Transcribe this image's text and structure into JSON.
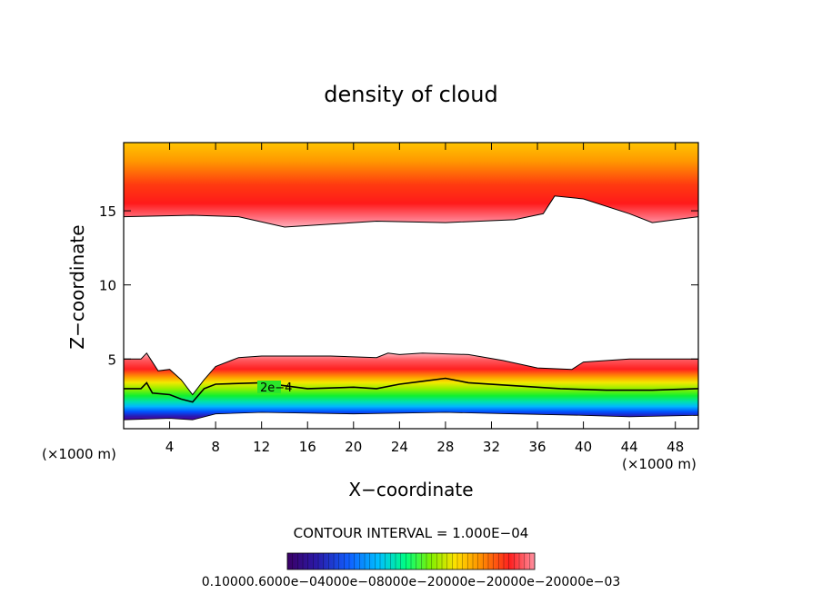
{
  "chart_data": {
    "type": "contour",
    "title": "density of cloud",
    "xlabel": "X−coordinate",
    "ylabel": "Z−coordinate",
    "x_unit_left": "(×1000 m)",
    "x_unit_right": "(×1000 m)",
    "xlim": [
      0,
      50
    ],
    "ylim": [
      0.3,
      19.6
    ],
    "x_ticks": [
      4,
      8,
      12,
      16,
      20,
      24,
      28,
      32,
      36,
      40,
      44,
      48
    ],
    "y_ticks": [
      5,
      10,
      15
    ],
    "contour_interval_text": "CONTOUR INTERVAL = 1.000E−04",
    "contour_label": "2e−4",
    "colorbar_labels": [
      "0.1000",
      "0.6000e−04",
      "0.1000e−03",
      "0.1500e−03",
      "0.2000e−03",
      "0.2500e−03",
      "0.3000e−03",
      "0.3500e−03"
    ],
    "colorbar_text": "0.10000.6000e−04000e−08000e−20000e−20000e−20000e−03",
    "upper_layer_boundary": [
      [
        0,
        14.6
      ],
      [
        6,
        14.7
      ],
      [
        10,
        14.6
      ],
      [
        14,
        13.9
      ],
      [
        18,
        14.1
      ],
      [
        22,
        14.3
      ],
      [
        28,
        14.2
      ],
      [
        34,
        14.4
      ],
      [
        36.5,
        14.8
      ],
      [
        37.5,
        16.0
      ],
      [
        40,
        15.8
      ],
      [
        44,
        14.8
      ],
      [
        46,
        14.2
      ],
      [
        50,
        14.6
      ]
    ],
    "lower_layer_top": [
      [
        0,
        5.0
      ],
      [
        1.5,
        5.0
      ],
      [
        2,
        5.4
      ],
      [
        3,
        4.2
      ],
      [
        4,
        4.3
      ],
      [
        5,
        3.6
      ],
      [
        6,
        2.6
      ],
      [
        7,
        3.6
      ],
      [
        8,
        4.5
      ],
      [
        10,
        5.1
      ],
      [
        12,
        5.2
      ],
      [
        14,
        5.2
      ],
      [
        18,
        5.2
      ],
      [
        22,
        5.1
      ],
      [
        23,
        5.4
      ],
      [
        24,
        5.3
      ],
      [
        26,
        5.4
      ],
      [
        30,
        5.3
      ],
      [
        33,
        4.9
      ],
      [
        36,
        4.4
      ],
      [
        39,
        4.3
      ],
      [
        40,
        4.8
      ],
      [
        44,
        5.0
      ],
      [
        50,
        5.0
      ]
    ],
    "contour_2e-4": [
      [
        0,
        3.0
      ],
      [
        1.5,
        3.0
      ],
      [
        2,
        3.4
      ],
      [
        2.5,
        2.7
      ],
      [
        4,
        2.6
      ],
      [
        5,
        2.3
      ],
      [
        6,
        2.1
      ],
      [
        7,
        3.0
      ],
      [
        8,
        3.3
      ],
      [
        12,
        3.4
      ],
      [
        16,
        3.0
      ],
      [
        20,
        3.1
      ],
      [
        22,
        3.0
      ],
      [
        24,
        3.3
      ],
      [
        26,
        3.5
      ],
      [
        28,
        3.7
      ],
      [
        30,
        3.4
      ],
      [
        34,
        3.2
      ],
      [
        38,
        3.0
      ],
      [
        42,
        2.9
      ],
      [
        46,
        2.9
      ],
      [
        50,
        3.0
      ]
    ],
    "lower_layer_base": [
      [
        0,
        0.9
      ],
      [
        4,
        1.0
      ],
      [
        6,
        0.9
      ],
      [
        8,
        1.3
      ],
      [
        12,
        1.4
      ],
      [
        20,
        1.3
      ],
      [
        28,
        1.4
      ],
      [
        34,
        1.3
      ],
      [
        40,
        1.2
      ],
      [
        44,
        1.1
      ],
      [
        50,
        1.2
      ]
    ],
    "colormap": [
      "#3b0066",
      "#1c1aa8",
      "#0052ff",
      "#00b0ff",
      "#00e6c8",
      "#00ff40",
      "#a8f000",
      "#f0f000",
      "#ffb000",
      "#ff2020",
      "#ff9aa6",
      "#ffffff"
    ]
  }
}
